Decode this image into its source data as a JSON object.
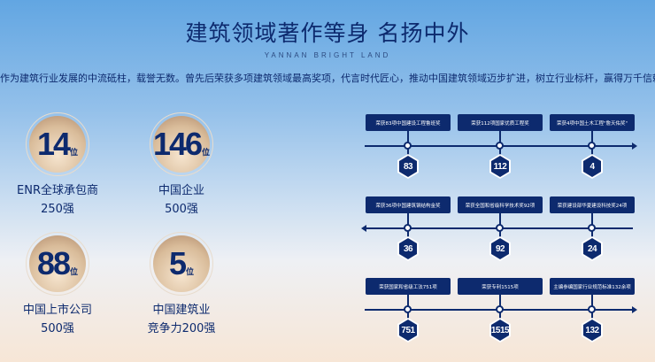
{
  "header": {
    "title": "建筑领域著作等身  名扬中外",
    "subtitle": "YANNAN BRIGHT LAND",
    "description": "作为建筑行业发展的中流砥柱，载誉无数。曾先后荣获多项建筑领域最高奖项，代言时代匠心，推动中国建筑领域迈步扩进，树立行业标杆，赢得万千信赖。"
  },
  "stats": [
    {
      "value": "14",
      "unit": "位",
      "line1": "ENR全球承包商",
      "line2": "250强"
    },
    {
      "value": "146",
      "unit": "位",
      "line1": "中国企业",
      "line2": "500强"
    },
    {
      "value": "88",
      "unit": "位",
      "line1": "中国上市公司",
      "line2": "500强"
    },
    {
      "value": "5",
      "unit": "位",
      "line1": "中国建筑业",
      "line2": "竞争力200强"
    }
  ],
  "timeline": [
    {
      "direction": "right",
      "items": [
        {
          "label": "荣获83项中国建设工程鲁班奖",
          "value": "83"
        },
        {
          "label": "荣获112项国家优质工程奖",
          "value": "112"
        },
        {
          "label": "荣获4项中国土木工程\"詹天佑奖\"",
          "value": "4"
        }
      ]
    },
    {
      "direction": "left",
      "items": [
        {
          "label": "荣获36项中国建筑钢结构金奖",
          "value": "36"
        },
        {
          "label": "荣获全国和省级科学技术奖92项",
          "value": "92"
        },
        {
          "label": "荣获建设部华夏建设科技奖24项",
          "value": "24"
        }
      ]
    },
    {
      "direction": "right",
      "items": [
        {
          "label": "荣获国家和省级工法751项",
          "value": "751"
        },
        {
          "label": "荣获专利1515项",
          "value": "1515"
        },
        {
          "label": "主编参编国家行业规范标准132余项",
          "value": "132"
        }
      ]
    }
  ],
  "colors": {
    "navy": "#0d2a6e",
    "top_blue": "#62a6e2",
    "bottom_peach": "#f7e6d6"
  }
}
